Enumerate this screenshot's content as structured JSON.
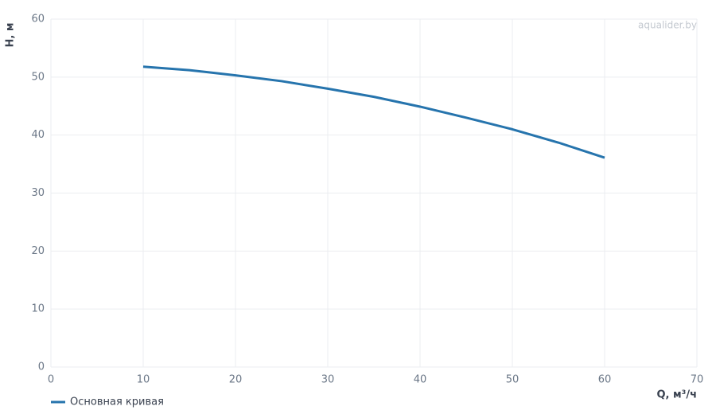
{
  "chart_data": {
    "type": "line",
    "watermark": "aqualider.by",
    "x_label": "Q, м³/ч",
    "y_label": "H, м",
    "x": [
      10,
      15,
      20,
      25,
      30,
      35,
      40,
      45,
      50,
      55,
      60
    ],
    "series": [
      {
        "name": "Основная кривая",
        "color": "#2674ad",
        "values": [
          51.8,
          51.2,
          50.3,
          49.3,
          48.0,
          46.6,
          44.9,
          43.0,
          41.0,
          38.7,
          36.1
        ]
      }
    ],
    "xlim": [
      0,
      70
    ],
    "xticks": [
      0,
      10,
      20,
      30,
      40,
      50,
      60,
      70
    ],
    "ylim": [
      0,
      60
    ],
    "yticks": [
      0,
      10,
      20,
      30,
      40,
      50,
      60
    ],
    "grid": true
  }
}
